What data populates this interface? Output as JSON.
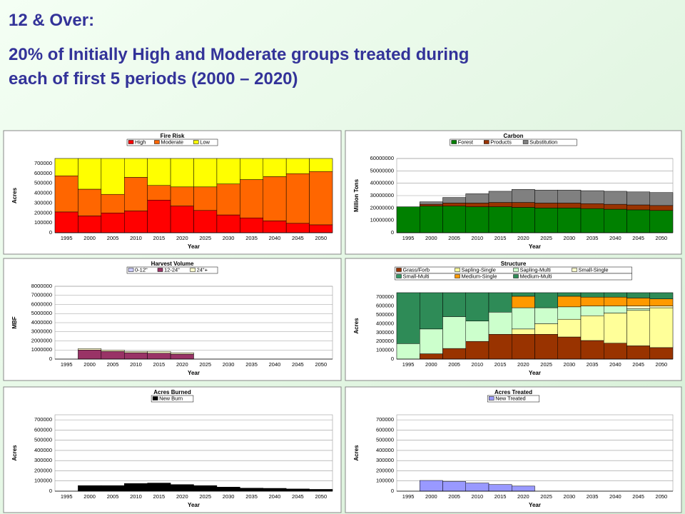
{
  "header": {
    "title": "12 & Over:",
    "subtitle": [
      "20% of Initially High and Moderate groups treated during",
      "each of first 5 periods (2000 – 2020)"
    ]
  },
  "chart_data": [
    {
      "type": "stacked_bar",
      "title": "Fire Risk",
      "y_label": "Acres",
      "x_label": "Year",
      "categories": [
        "1995",
        "2000",
        "2005",
        "2010",
        "2015",
        "2020",
        "2025",
        "2030",
        "2035",
        "2040",
        "2045",
        "2050"
      ],
      "series": [
        {
          "name": "High",
          "color": "#ff0000",
          "values": [
            210000,
            170000,
            200000,
            220000,
            330000,
            270000,
            225000,
            180000,
            150000,
            120000,
            95000,
            80000
          ]
        },
        {
          "name": "Moderate",
          "color": "#ff6600",
          "values": [
            365000,
            270000,
            188000,
            340000,
            148000,
            193000,
            238000,
            313000,
            387000,
            447000,
            502000,
            539000
          ]
        },
        {
          "name": "Low",
          "color": "#ffff00",
          "values": [
            175000,
            310000,
            362000,
            190000,
            272000,
            287000,
            287000,
            257000,
            213000,
            183000,
            153000,
            131000
          ]
        }
      ],
      "ylim": [
        0,
        750000
      ],
      "yticks": [
        0,
        100000,
        200000,
        300000,
        400000,
        500000,
        600000,
        700000
      ],
      "grid": true
    },
    {
      "type": "stacked_bar",
      "title": "Carbon",
      "y_label": "Million Tons",
      "x_label": "Year",
      "categories": [
        "1995",
        "2000",
        "2005",
        "2010",
        "2015",
        "2020",
        "2025",
        "2030",
        "2035",
        "2040",
        "2045",
        "2050"
      ],
      "series": [
        {
          "name": "Forest",
          "color": "#008000",
          "values": [
            21000000,
            21500000,
            21500000,
            21000000,
            21000000,
            20500000,
            20000000,
            20000000,
            19500000,
            19000000,
            18500000,
            18000000
          ]
        },
        {
          "name": "Products",
          "color": "#993300",
          "values": [
            0,
            1500000,
            2500000,
            3000000,
            3500000,
            4000000,
            4000000,
            4000000,
            4000000,
            4000000,
            4000000,
            4000000
          ]
        },
        {
          "name": "Substitution",
          "color": "#808080",
          "values": [
            0,
            2000000,
            4500000,
            7500000,
            9000000,
            10500000,
            10500000,
            10500000,
            10500000,
            10500000,
            10500000,
            10500000
          ]
        }
      ],
      "ylim": [
        0,
        60000000
      ],
      "yticks": [
        0,
        10000000,
        20000000,
        30000000,
        40000000,
        50000000,
        60000000
      ],
      "grid": true
    },
    {
      "type": "stacked_bar",
      "title": "Harvest Volume",
      "y_label": "MBF",
      "x_label": "Year",
      "categories": [
        "1995",
        "2000",
        "2005",
        "2010",
        "2015",
        "2020",
        "2025",
        "2030",
        "2035",
        "2040",
        "2045",
        "2050"
      ],
      "series": [
        {
          "name": "0-12\"",
          "color": "#ccccff",
          "values": [
            0,
            0,
            0,
            0,
            0,
            0,
            0,
            0,
            0,
            0,
            0,
            0
          ]
        },
        {
          "name": "12-24\"",
          "color": "#993366",
          "values": [
            0,
            1000000,
            850000,
            700000,
            650000,
            550000,
            0,
            0,
            0,
            0,
            0,
            0
          ]
        },
        {
          "name": "24\"+",
          "color": "#ffffcc",
          "values": [
            0,
            150000,
            150000,
            150000,
            200000,
            150000,
            0,
            0,
            0,
            0,
            0,
            0
          ]
        }
      ],
      "ylim": [
        0,
        8000000
      ],
      "yticks": [
        0,
        1000000,
        2000000,
        3000000,
        4000000,
        5000000,
        6000000,
        7000000,
        8000000
      ],
      "grid": true
    },
    {
      "type": "stacked_bar",
      "title": "Structure",
      "y_label": "Acres",
      "x_label": "Year",
      "categories": [
        "1995",
        "2000",
        "2005",
        "2010",
        "2015",
        "2020",
        "2025",
        "2030",
        "2035",
        "2040",
        "2045",
        "2050"
      ],
      "series": [
        {
          "name": "Grass/Forb",
          "color": "#993300",
          "values": [
            0,
            60000,
            120000,
            200000,
            280000,
            280000,
            280000,
            250000,
            210000,
            180000,
            150000,
            130000
          ]
        },
        {
          "name": "Sapling-Single",
          "color": "#ffff99",
          "values": [
            0,
            0,
            0,
            0,
            0,
            60000,
            120000,
            200000,
            280000,
            340000,
            400000,
            450000
          ]
        },
        {
          "name": "Sapling-Multi",
          "color": "#ccffcc",
          "values": [
            175000,
            280000,
            360000,
            230000,
            250000,
            240000,
            180000,
            140000,
            110000,
            80000,
            20000,
            0
          ]
        },
        {
          "name": "Small-Single",
          "color": "#ffffcc",
          "values": [
            0,
            0,
            0,
            0,
            0,
            0,
            0,
            0,
            0,
            0,
            30000,
            20000
          ]
        },
        {
          "name": "Small-Multi",
          "color": "#339966",
          "values": [
            0,
            0,
            0,
            0,
            0,
            0,
            0,
            0,
            0,
            0,
            0,
            0
          ]
        },
        {
          "name": "Medium-Single",
          "color": "#ff9900",
          "values": [
            0,
            0,
            0,
            0,
            0,
            130000,
            0,
            120000,
            100000,
            100000,
            90000,
            80000
          ]
        },
        {
          "name": "Medium-Multi",
          "color": "#2e8b57",
          "values": [
            575000,
            410000,
            270000,
            320000,
            220000,
            40000,
            170000,
            40000,
            50000,
            50000,
            60000,
            70000
          ]
        }
      ],
      "ylim": [
        0,
        750000
      ],
      "yticks": [
        0,
        100000,
        200000,
        300000,
        400000,
        500000,
        600000,
        700000
      ],
      "grid": true
    },
    {
      "type": "stacked_bar",
      "title": "Acres Burned",
      "y_label": "Acres",
      "x_label": "Year",
      "categories": [
        "1995",
        "2000",
        "2005",
        "2010",
        "2015",
        "2020",
        "2025",
        "2030",
        "2035",
        "2040",
        "2045",
        "2050"
      ],
      "series": [
        {
          "name": "New Burn",
          "color": "#000000",
          "values": [
            0,
            55000,
            55000,
            75000,
            80000,
            65000,
            55000,
            40000,
            30000,
            28000,
            22000,
            18000
          ]
        }
      ],
      "ylim": [
        0,
        750000
      ],
      "yticks": [
        0,
        100000,
        200000,
        300000,
        400000,
        500000,
        600000,
        700000
      ],
      "grid": true
    },
    {
      "type": "stacked_bar",
      "title": "Acres Treated",
      "y_label": "Acres",
      "x_label": "Year",
      "categories": [
        "1995",
        "2000",
        "2005",
        "2010",
        "2015",
        "2020",
        "2025",
        "2030",
        "2035",
        "2040",
        "2045",
        "2050"
      ],
      "series": [
        {
          "name": "New Treated",
          "color": "#9999ff",
          "values": [
            0,
            105000,
            95000,
            80000,
            65000,
            50000,
            0,
            0,
            0,
            0,
            0,
            0
          ]
        }
      ],
      "ylim": [
        0,
        750000
      ],
      "yticks": [
        0,
        100000,
        200000,
        300000,
        400000,
        500000,
        600000,
        700000
      ],
      "grid": true
    }
  ]
}
